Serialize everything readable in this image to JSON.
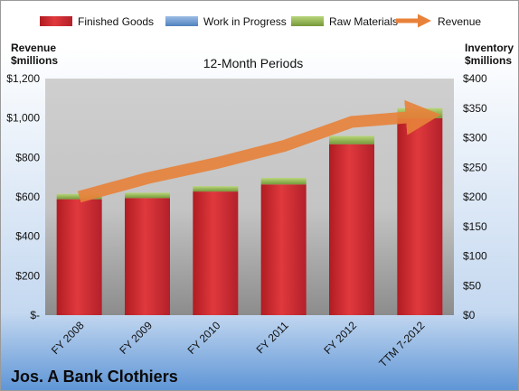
{
  "colors": {
    "finished_goods": "#d42a2e",
    "work_in_progress": "#4f81bd",
    "raw_materials": "#8fb040",
    "revenue": "#e8823a"
  },
  "chart_data": {
    "type": "bar",
    "title": "12-Month Periods",
    "caption": "Jos. A Bank Clothiers",
    "categories": [
      "FY 2008",
      "FY 2009",
      "FY 2010",
      "FY 2011",
      "FY 2012",
      "TTM 7-2012"
    ],
    "left_axis": {
      "label_line1": "Revenue",
      "label_line2": "$millions",
      "range": [
        0,
        1200
      ],
      "ticks": [
        "$-",
        "$200",
        "$400",
        "$600",
        "$800",
        "$1,000",
        "$1,200"
      ]
    },
    "right_axis": {
      "label_line1": "Inventory",
      "label_line2": "$millions",
      "range": [
        0,
        400
      ],
      "ticks": [
        "$0",
        "$50",
        "$100",
        "$150",
        "$200",
        "$250",
        "$300",
        "$350",
        "$400"
      ]
    },
    "series": [
      {
        "name": "Finished Goods",
        "type": "stacked-bar",
        "axis": "right",
        "values": [
          196,
          198,
          209,
          221,
          289,
          333
        ]
      },
      {
        "name": "Work in Progress",
        "type": "stacked-bar",
        "axis": "right",
        "values": [
          0,
          0,
          0,
          0,
          0,
          0
        ]
      },
      {
        "name": "Raw Materials",
        "type": "stacked-bar",
        "axis": "right",
        "values": [
          9,
          9,
          9,
          11,
          14,
          17
        ]
      },
      {
        "name": "Revenue",
        "type": "line",
        "axis": "left",
        "values": [
          600,
          695,
          770,
          858,
          980,
          1008
        ]
      }
    ],
    "legend_position": "top",
    "grid": false
  }
}
